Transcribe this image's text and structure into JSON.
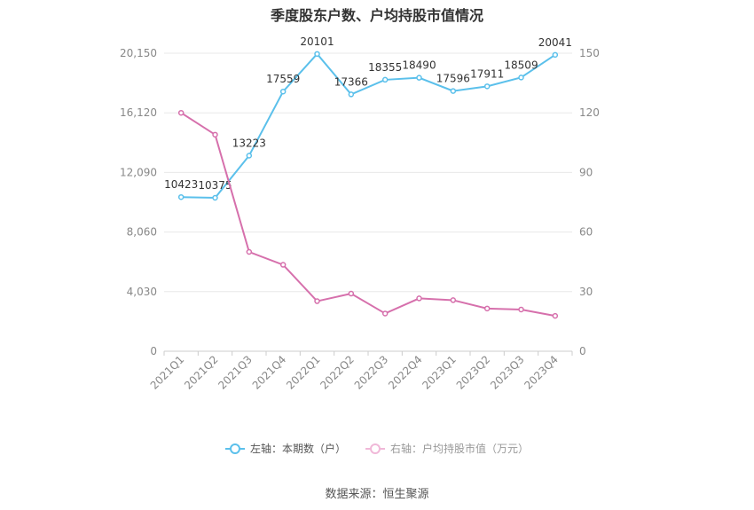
{
  "chart_data": {
    "type": "line",
    "title": "季度股东户数、户均持股市值情况",
    "categories": [
      "2021Q1",
      "2021Q2",
      "2021Q3",
      "2021Q4",
      "2022Q1",
      "2022Q2",
      "2022Q3",
      "2022Q4",
      "2023Q1",
      "2023Q2",
      "2023Q3",
      "2023Q4"
    ],
    "left_axis": {
      "ticks": [
        "0",
        "4,030",
        "8,060",
        "12,090",
        "16,120",
        "20,150"
      ],
      "ylim": [
        0,
        20150
      ]
    },
    "right_axis": {
      "ticks": [
        "0",
        "30",
        "60",
        "90",
        "120",
        "150"
      ],
      "ylim": [
        0,
        150
      ]
    },
    "series": [
      {
        "name": "左轴：本期数（户）",
        "axis": "left",
        "color": "#5bc0eb",
        "values": [
          10423,
          10375,
          13223,
          17559,
          20101,
          17366,
          18355,
          18490,
          17596,
          17911,
          18509,
          20041
        ],
        "labels": [
          "10423",
          "10375",
          "13223",
          "17559",
          "20101",
          "17366",
          "18355",
          "18490",
          "17596",
          "17911",
          "18509",
          "20041"
        ]
      },
      {
        "name": "右轴：户均持股市值（万元）",
        "axis": "right",
        "color": "#d670ac",
        "values": [
          120,
          109,
          50,
          43.5,
          25.2,
          29,
          19,
          26.6,
          25.7,
          21.5,
          21,
          17.8
        ]
      }
    ],
    "grid": true,
    "legend_position": "bottom"
  },
  "source_text": "数据来源：恒生聚源"
}
